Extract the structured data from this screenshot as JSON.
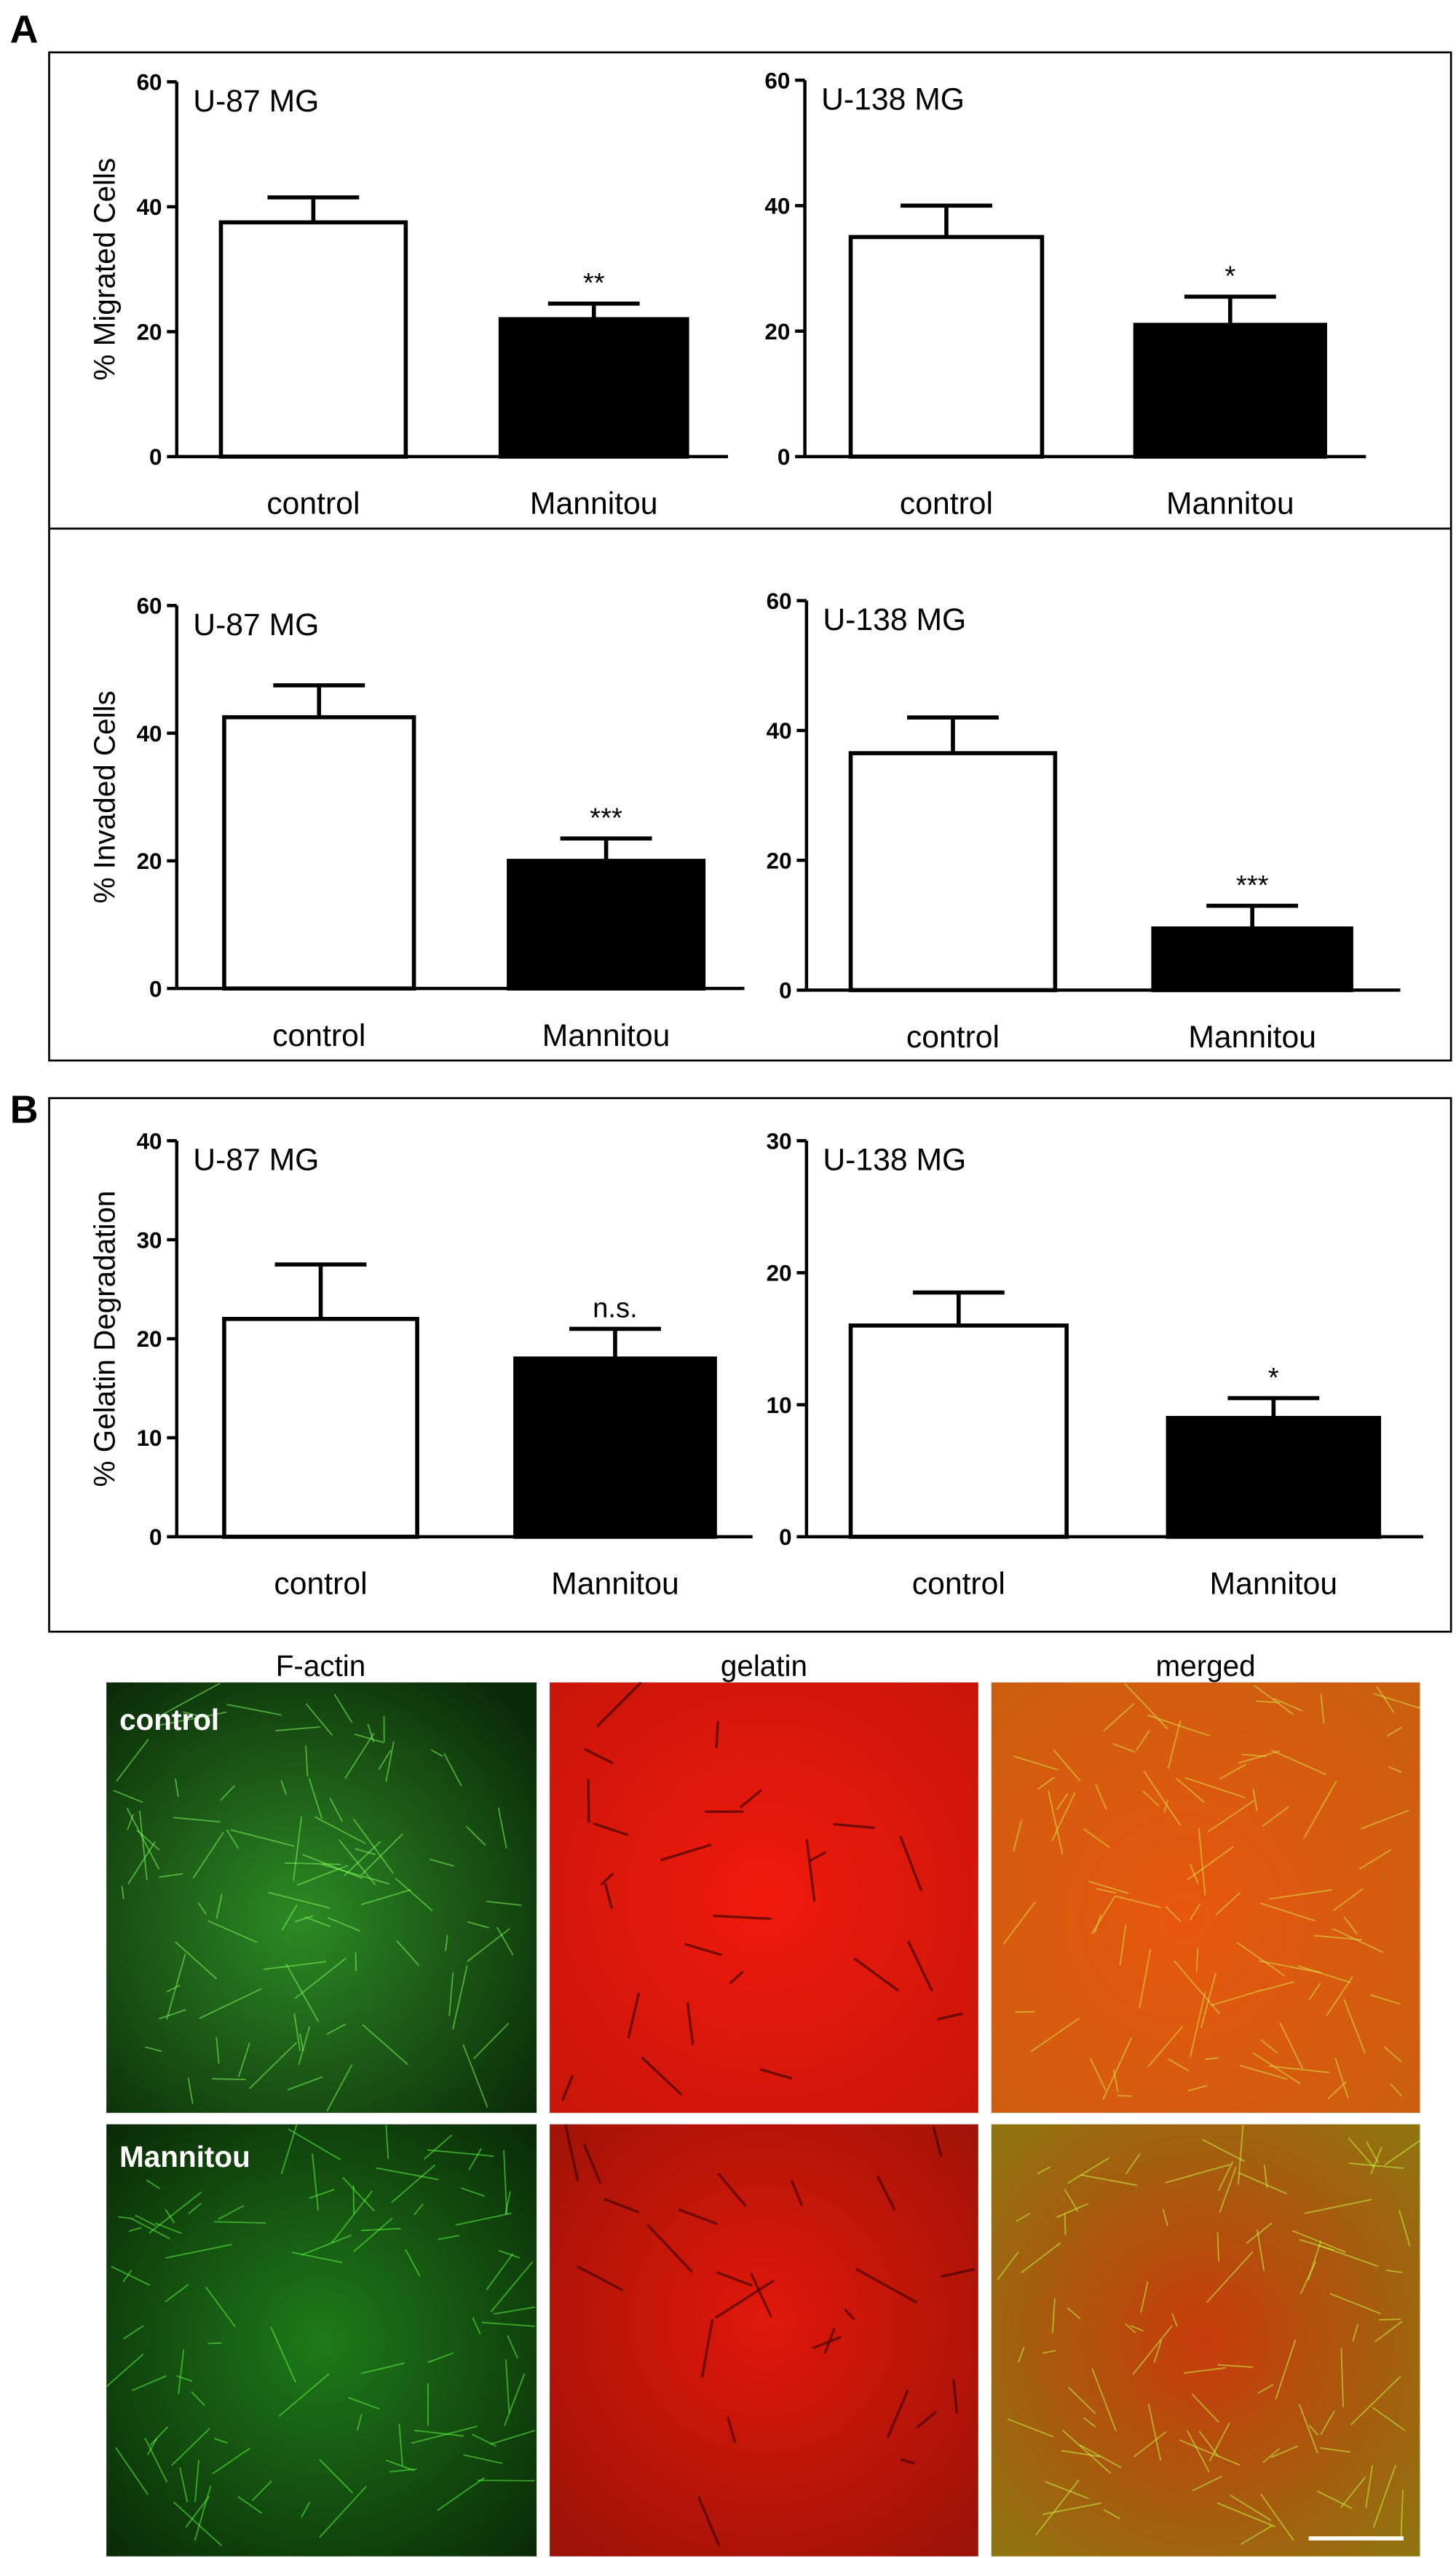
{
  "panels": {
    "a": "A",
    "b": "B"
  },
  "chart_data": [
    {
      "type": "bar",
      "title": "U-87 MG",
      "ylabel": "% Migrated Cells",
      "categories": [
        "control",
        "Mannitou"
      ],
      "values": [
        37.5,
        22
      ],
      "errors": [
        4,
        2.5
      ],
      "colors": [
        "#ffffff",
        "#000000"
      ],
      "annotation": "**",
      "ylim": [
        0,
        60
      ],
      "yticks": [
        0,
        20,
        40,
        60
      ]
    },
    {
      "type": "bar",
      "title": "U-138 MG",
      "categories": [
        "control",
        "Mannitou"
      ],
      "values": [
        35,
        21
      ],
      "errors": [
        5,
        4.5
      ],
      "colors": [
        "#ffffff",
        "#000000"
      ],
      "annotation": "*",
      "ylim": [
        0,
        60
      ],
      "yticks": [
        0,
        20,
        40,
        60
      ]
    },
    {
      "type": "bar",
      "title": "U-87 MG",
      "ylabel": "% Invaded Cells",
      "categories": [
        "control",
        "Mannitou"
      ],
      "values": [
        42.5,
        20
      ],
      "errors": [
        5,
        3.5
      ],
      "colors": [
        "#ffffff",
        "#000000"
      ],
      "annotation": "***",
      "ylim": [
        0,
        60
      ],
      "yticks": [
        0,
        20,
        40,
        60
      ]
    },
    {
      "type": "bar",
      "title": "U-138 MG",
      "categories": [
        "control",
        "Mannitou"
      ],
      "values": [
        36.5,
        9.5
      ],
      "errors": [
        5.5,
        3.5
      ],
      "colors": [
        "#ffffff",
        "#000000"
      ],
      "annotation": "***",
      "ylim": [
        0,
        60
      ],
      "yticks": [
        0,
        20,
        40,
        60
      ]
    },
    {
      "type": "bar",
      "title": "U-87 MG",
      "ylabel": "% Gelatin Degradation",
      "categories": [
        "control",
        "Mannitou"
      ],
      "values": [
        22,
        18
      ],
      "errors": [
        5.5,
        3
      ],
      "colors": [
        "#ffffff",
        "#000000"
      ],
      "annotation": "n.s.",
      "ylim": [
        0,
        40
      ],
      "yticks": [
        0,
        10,
        20,
        30,
        40
      ]
    },
    {
      "type": "bar",
      "title": "U-138 MG",
      "categories": [
        "control",
        "Mannitou"
      ],
      "values": [
        16,
        9
      ],
      "errors": [
        2.5,
        1.5
      ],
      "colors": [
        "#ffffff",
        "#000000"
      ],
      "annotation": "*",
      "ylim": [
        0,
        30
      ],
      "yticks": [
        0,
        10,
        20,
        30
      ]
    }
  ],
  "images": {
    "columns": [
      "F-actin",
      "gelatin",
      "merged"
    ],
    "rows": [
      "control",
      "Mannitou"
    ]
  }
}
